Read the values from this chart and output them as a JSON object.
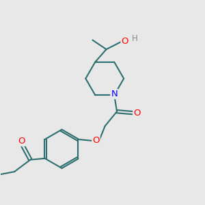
{
  "background_color": "#e8e8e8",
  "line_color": "#2d6e6e",
  "bond_width": 1.5,
  "atom_colors": {
    "O": "#ff0000",
    "N": "#0000ff",
    "H": "#888888",
    "C": "#2d6e6e"
  },
  "font_size": 8.5,
  "figsize": [
    3.0,
    3.0
  ],
  "dpi": 100
}
